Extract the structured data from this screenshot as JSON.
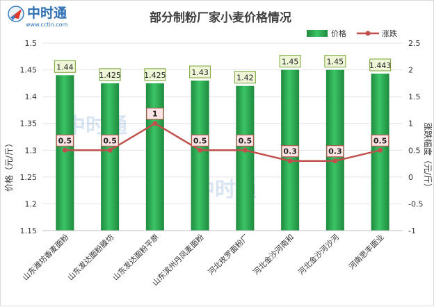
{
  "logo": {
    "name": "中时通",
    "url": "www.cctin.com"
  },
  "chart_data": {
    "type": "bar+line",
    "title": "部分制粉厂家小麦价格情况",
    "categories": [
      "山东潍坊香麦面粉",
      "山东发达面粉滕坊",
      "山东发达面粉平原",
      "山东滨州丹凤麦面粉",
      "河北玫罗面粉厂",
      "河北金沙河南和",
      "河北金沙河沙河",
      "河南思丰面业"
    ],
    "ylabel_left": "价格（元/斤）",
    "ylabel_right": "涨跌幅度（元/斤）",
    "ylim_left": [
      1.15,
      1.5
    ],
    "yticks_left": [
      "1.15",
      "1.2",
      "1.25",
      "1.3",
      "1.35",
      "1.4",
      "1.45",
      "1.5"
    ],
    "ylim_right": [
      -1,
      2.5
    ],
    "yticks_right": [
      "-1",
      "-0.5",
      "0",
      "0.5",
      "1",
      "1.5",
      "2",
      "2.5"
    ],
    "grid": true,
    "legend_position": "top-right",
    "series": [
      {
        "name": "价格",
        "type": "bar",
        "color": "#2ca24e",
        "values": [
          1.44,
          1.425,
          1.425,
          1.43,
          1.42,
          1.45,
          1.45,
          1.443
        ],
        "labels": [
          "1.44",
          "1.425",
          "1.425",
          "1.43",
          "1.42",
          "1.45",
          "1.45",
          "1.443"
        ]
      },
      {
        "name": "涨跌",
        "type": "line",
        "axis": "right",
        "color": "#c0504d",
        "values": [
          0.5,
          0.5,
          1,
          0.5,
          0.5,
          0.3,
          0.3,
          0.5
        ],
        "labels": [
          "0.5",
          "0.5",
          "1",
          "0.5",
          "0.5",
          "0.3",
          "0.3",
          "0.5"
        ]
      }
    ]
  }
}
